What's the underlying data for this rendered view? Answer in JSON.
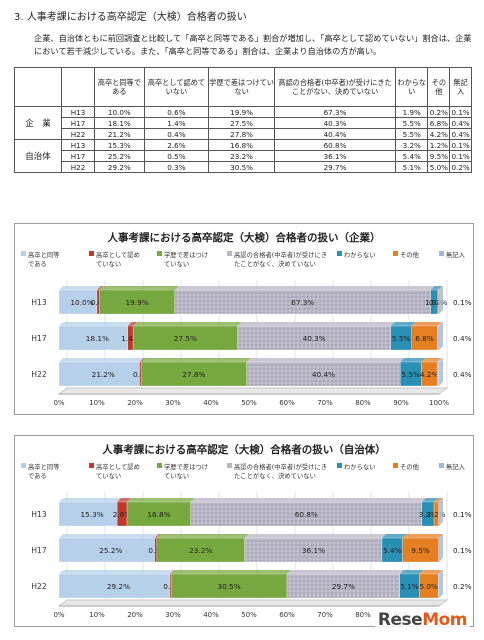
{
  "heading": "3. 人事考課における高卒認定（大検）合格者の扱い",
  "paragraph": "企業、自治体ともに前回調査と比較して「高卒と同等である」割合が増加し、「高卒として認めていない」割合は、企業において若干減少している。また、「高卒と同等である」割合は、企業より自治体の方が高い。",
  "table": {
    "headers": [
      "高卒と同等である",
      "高卒として認めていない",
      "学歴で差はつけていない",
      "高認の合格者(中卒者)が受けにきたことがない、決めていない",
      "わからない",
      "その他",
      "無記入"
    ],
    "groups": [
      {
        "label": "企　業",
        "rows": [
          {
            "year": "H13",
            "cells": [
              "10.0%",
              "0.6%",
              "19.9%",
              "67.3%",
              "1.9%",
              "0.2%",
              "0.1%"
            ]
          },
          {
            "year": "H17",
            "cells": [
              "18.1%",
              "1.4%",
              "27.5%",
              "40.3%",
              "5.5%",
              "6.8%",
              "0.4%"
            ]
          },
          {
            "year": "H22",
            "cells": [
              "21.2%",
              "0.4%",
              "27.8%",
              "40.4%",
              "5.5%",
              "4.2%",
              "0.4%"
            ]
          }
        ]
      },
      {
        "label": "自治体",
        "rows": [
          {
            "year": "H13",
            "cells": [
              "15.3%",
              "2.6%",
              "16.8%",
              "60.8%",
              "3.2%",
              "1.2%",
              "0.1%"
            ]
          },
          {
            "year": "H17",
            "cells": [
              "25.2%",
              "0.5%",
              "23.2%",
              "36.1%",
              "5.4%",
              "9.5%",
              "0.1%"
            ]
          },
          {
            "year": "H22",
            "cells": [
              "29.2%",
              "0.3%",
              "30.5%",
              "29.7%",
              "5.1%",
              "5.0%",
              "0.2%"
            ]
          }
        ]
      }
    ]
  },
  "colors": [
    "#b7d0ea",
    "#c0392b",
    "#77a83f",
    "#b9b6c6",
    "#2a8fb5",
    "#e67e22",
    "#9fb7d9"
  ],
  "chart_data": [
    {
      "type": "bar",
      "orientation": "horizontal",
      "stacked": true,
      "title": "人事考課における高卒認定（大検）合格者の扱い（企業）",
      "categories": [
        "H13",
        "H17",
        "H22"
      ],
      "xlim": [
        0,
        100
      ],
      "xticks": [
        "0%",
        "10%",
        "20%",
        "30%",
        "40%",
        "50%",
        "60%",
        "70%",
        "80%",
        "90%",
        "100%"
      ],
      "legend_position": "top",
      "series": [
        {
          "name": "高卒と同等である",
          "values": [
            10.0,
            18.1,
            21.2
          ]
        },
        {
          "name": "高卒として認めていない",
          "values": [
            0.6,
            1.4,
            0.4
          ]
        },
        {
          "name": "学歴で差はつけていない",
          "values": [
            19.9,
            27.5,
            27.8
          ]
        },
        {
          "name": "高認の合格者(中卒者)が受けにきたことがなく、決めていない",
          "values": [
            67.3,
            40.3,
            40.4
          ]
        },
        {
          "name": "わからない",
          "values": [
            1.9,
            5.5,
            5.5
          ]
        },
        {
          "name": "その他",
          "values": [
            0.2,
            6.8,
            4.2
          ]
        },
        {
          "name": "無記入",
          "values": [
            0.1,
            0.4,
            0.4
          ]
        }
      ]
    },
    {
      "type": "bar",
      "orientation": "horizontal",
      "stacked": true,
      "title": "人事考課における高卒認定（大検）合格者の扱い（自治体）",
      "categories": [
        "H13",
        "H17",
        "H22"
      ],
      "xlim": [
        0,
        100
      ],
      "xticks": [
        "0%",
        "10%",
        "20%",
        "30%",
        "40%",
        "50%",
        "60%",
        "70%",
        "80%",
        "90%",
        "100%"
      ],
      "legend_position": "top",
      "series": [
        {
          "name": "高卒と同等である",
          "values": [
            15.3,
            25.2,
            29.2
          ]
        },
        {
          "name": "高卒として認めていない",
          "values": [
            2.6,
            0.5,
            0.3
          ]
        },
        {
          "name": "学歴で差はつけていない",
          "values": [
            16.8,
            23.2,
            30.5
          ]
        },
        {
          "name": "高認の合格者(中卒者)が受けにきたことがなく、決めていない",
          "values": [
            60.8,
            36.1,
            29.7
          ]
        },
        {
          "name": "わからない",
          "values": [
            3.2,
            5.4,
            5.1
          ]
        },
        {
          "name": "その他",
          "values": [
            1.2,
            9.5,
            5.0
          ]
        },
        {
          "name": "無記入",
          "values": [
            0.1,
            0.1,
            0.2
          ]
        }
      ]
    }
  ],
  "logo": {
    "main": "Rese",
    "accent": "Mom"
  }
}
